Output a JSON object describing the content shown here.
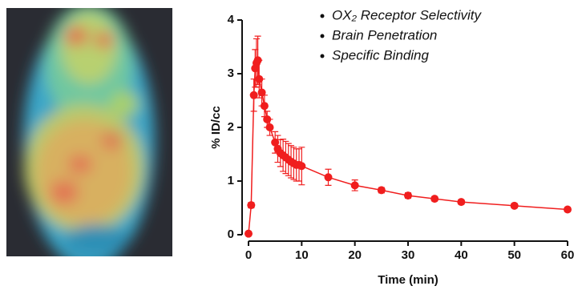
{
  "chart_data": {
    "type": "line",
    "x_label": "Time (min)",
    "y_label": "% ID/cc",
    "annotations": [
      "OX₂ Receptor Selectivity",
      "Brain Penetration",
      "Specific Binding"
    ],
    "x": [
      0,
      0.5,
      1,
      1.25,
      1.5,
      1.75,
      2,
      2.5,
      3,
      3.5,
      4,
      5,
      5.5,
      6,
      6.5,
      7,
      7.5,
      8,
      8.5,
      9,
      9.5,
      10,
      15,
      20,
      25,
      30,
      35,
      40,
      50,
      60
    ],
    "series": [
      {
        "color": "#f01e1e",
        "values": [
          0.02,
          0.55,
          2.6,
          3.1,
          3.2,
          3.25,
          2.9,
          2.65,
          2.4,
          2.15,
          2.0,
          1.72,
          1.6,
          1.52,
          1.48,
          1.44,
          1.4,
          1.36,
          1.33,
          1.3,
          1.3,
          1.28,
          1.07,
          0.92,
          0.83,
          0.73,
          0.67,
          0.61,
          0.54,
          0.47
        ],
        "errors": [
          0.02,
          0.05,
          0.3,
          0.35,
          0.45,
          0.45,
          0.35,
          0.25,
          0.2,
          0.15,
          0.15,
          0.2,
          0.25,
          0.25,
          0.3,
          0.3,
          0.3,
          0.3,
          0.3,
          0.3,
          0.3,
          0.35,
          0.15,
          0.1,
          0.05,
          0.05,
          0.04,
          0.04,
          0.04,
          0.04
        ]
      }
    ],
    "xlim": [
      0,
      60
    ],
    "xticks": [
      0,
      10,
      20,
      30,
      40,
      50,
      60
    ],
    "ylim": [
      0,
      4
    ],
    "yticks": [
      0,
      1,
      2,
      3,
      4
    ]
  }
}
